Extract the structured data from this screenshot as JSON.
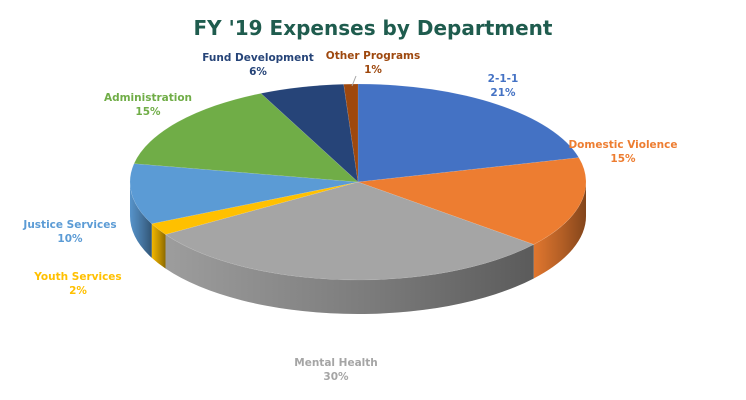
{
  "chart_data": {
    "type": "pie",
    "title": "FY '19 Expenses by Department",
    "slices": [
      {
        "label": "2-1-1",
        "value": 21,
        "value_text": "21%",
        "color": "#4472C4",
        "label_color": "#4472C4"
      },
      {
        "label": "Domestic Violence",
        "value": 15,
        "value_text": "15%",
        "color": "#ED7D31",
        "label_color": "#ED7D31"
      },
      {
        "label": "Mental Health",
        "value": 30,
        "value_text": "30%",
        "color": "#A5A5A5",
        "label_color": "#A5A5A5"
      },
      {
        "label": "Youth Services",
        "value": 2,
        "value_text": "2%",
        "color": "#FFC000",
        "label_color": "#FFC000"
      },
      {
        "label": "Justice Services",
        "value": 10,
        "value_text": "10%",
        "color": "#5B9BD5",
        "label_color": "#5B9BD5"
      },
      {
        "label": "Administration",
        "value": 15,
        "value_text": "15%",
        "color": "#70AD47",
        "label_color": "#70AD47"
      },
      {
        "label": "Fund Development",
        "value": 6,
        "value_text": "6%",
        "color": "#264478",
        "label_color": "#264478"
      },
      {
        "label": "Other Programs",
        "value": 1,
        "value_text": "1%",
        "color": "#9E480E",
        "label_color": "#9E480E"
      }
    ]
  },
  "colors": {
    "title": "#1F5C4E"
  }
}
